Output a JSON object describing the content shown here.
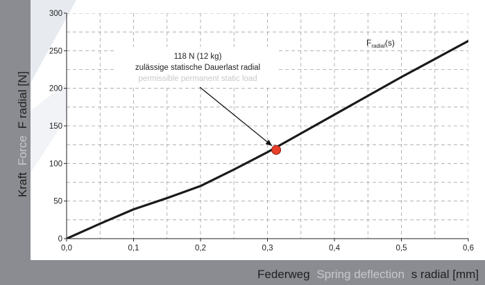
{
  "chart_data": {
    "type": "line",
    "ylabel": {
      "de": "Kraft",
      "en": "Force",
      "sym": "F radial [N]"
    },
    "xlabel": {
      "de": "Federweg",
      "en": "Spring deflection",
      "sym": "s radial [mm]"
    },
    "xlim": [
      0,
      0.6
    ],
    "ylim": [
      0,
      300
    ],
    "x_ticks": [
      "0,0",
      "0,1",
      "0,2",
      "0,3",
      "0,4",
      "0,5",
      "0,6"
    ],
    "y_ticks": [
      "0",
      "50",
      "100",
      "150",
      "200",
      "250",
      "300"
    ],
    "grid": true,
    "series": [
      {
        "name": "F_radial(s)",
        "legend": {
          "main": "F",
          "sub": "radial",
          "tail": "(s)"
        },
        "color": "#1a1a1a",
        "x": [
          0,
          0.05,
          0.1,
          0.15,
          0.2,
          0.25,
          0.3,
          0.35,
          0.4,
          0.45,
          0.5,
          0.55,
          0.6
        ],
        "y": [
          0,
          20,
          39,
          54,
          70,
          92,
          115,
          140,
          165,
          190,
          215,
          239,
          263
        ]
      }
    ],
    "highlight_point": {
      "x": 0.313,
      "y": 118,
      "color": "#e8402a"
    },
    "annotation": {
      "line1": "118 N (12 kg)",
      "line2": "zulässige statische Dauerlast radial",
      "line3": "permissible permanent static load"
    }
  },
  "colors": {
    "background": "#8a8c92",
    "plot_bg": "#ffffff",
    "grid": "#a0a0a0",
    "marker": "#e8402a",
    "english_text": "#c8c9cc",
    "label_text": "#1f1f1f"
  }
}
